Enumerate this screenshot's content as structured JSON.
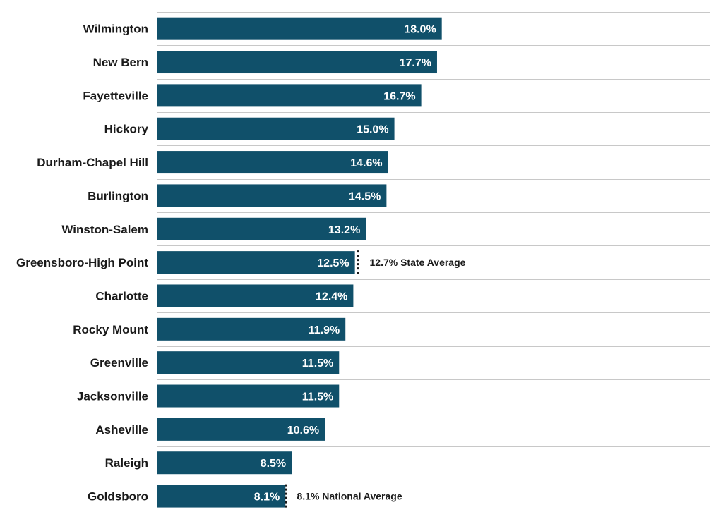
{
  "chart_data": {
    "type": "bar",
    "orientation": "horizontal",
    "categories": [
      "Wilmington",
      "New Bern",
      "Fayetteville",
      "Hickory",
      "Durham-Chapel Hill",
      "Burlington",
      "Winston-Salem",
      "Greensboro-High Point",
      "Charlotte",
      "Rocky Mount",
      "Greenville",
      "Jacksonville",
      "Asheville",
      "Raleigh",
      "Goldsboro"
    ],
    "values": [
      18.0,
      17.7,
      16.7,
      15.0,
      14.6,
      14.5,
      13.2,
      12.5,
      12.4,
      11.9,
      11.5,
      11.5,
      10.6,
      8.5,
      8.1
    ],
    "value_labels": [
      "18.0%",
      "17.7%",
      "16.7%",
      "15.0%",
      "14.6%",
      "14.5%",
      "13.2%",
      "12.5%",
      "12.4%",
      "11.9%",
      "11.5%",
      "11.5%",
      "10.6%",
      "8.5%",
      "8.1%"
    ],
    "bar_color": "#10506a",
    "title": "",
    "xlabel": "",
    "ylabel": "",
    "xlim": [
      0,
      35
    ],
    "grid": false,
    "reference_lines": [
      {
        "value": 12.7,
        "label": "12.7% State Average",
        "category": "Greensboro-High Point"
      },
      {
        "value": 8.1,
        "label": "8.1% National Average",
        "category": "Goldsboro"
      }
    ]
  }
}
